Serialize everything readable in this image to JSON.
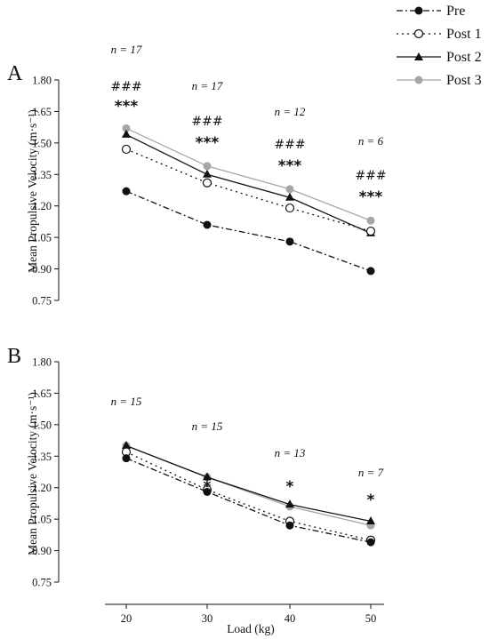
{
  "legend": {
    "items": [
      {
        "name": "Pre",
        "color": "#111111",
        "marker": "filled-circle",
        "dash": "dash-dot"
      },
      {
        "name": "Post 1",
        "color": "#111111",
        "marker": "open-circle",
        "dash": "dotted"
      },
      {
        "name": "Post 2",
        "color": "#111111",
        "marker": "triangle",
        "dash": "solid"
      },
      {
        "name": "Post 3",
        "color": "#a6a6a6",
        "marker": "grey-circle",
        "dash": "solid"
      }
    ]
  },
  "chart_data": [
    {
      "type": "line",
      "panel": "A",
      "ylabel": "Mean Propulsive Velocity (m·s⁻¹)",
      "xlabel": "",
      "ylim": [
        0.75,
        1.8
      ],
      "yticks": [
        "0.75",
        "0.90",
        "1.05",
        "1.20",
        "1.35",
        "1.50",
        "1.65",
        "1.80"
      ],
      "x": [
        20,
        30,
        40,
        50
      ],
      "series": [
        {
          "name": "Pre",
          "values": [
            1.27,
            1.11,
            1.03,
            0.89
          ]
        },
        {
          "name": "Post 1",
          "values": [
            1.47,
            1.31,
            1.19,
            1.08
          ]
        },
        {
          "name": "Post 2",
          "values": [
            1.54,
            1.35,
            1.24,
            1.07
          ]
        },
        {
          "name": "Post 3",
          "values": [
            1.57,
            1.39,
            1.28,
            1.13
          ]
        }
      ],
      "annotations": [
        {
          "x": 20,
          "n": "n = 17",
          "hash": "###",
          "stars": "***"
        },
        {
          "x": 30,
          "n": "n = 17",
          "hash": "###",
          "stars": "***"
        },
        {
          "x": 40,
          "n": "n = 12",
          "hash": "###",
          "stars": "***"
        },
        {
          "x": 50,
          "n": "n = 6",
          "hash": "###",
          "stars": "***"
        }
      ]
    },
    {
      "type": "line",
      "panel": "B",
      "ylabel": "Mean Propulsive Velocity (m·s⁻¹)",
      "xlabel": "Load (kg)",
      "ylim": [
        0.75,
        1.8
      ],
      "yticks": [
        "0.75",
        "0.90",
        "1.05",
        "1.20",
        "1.35",
        "1.50",
        "1.65",
        "1.80"
      ],
      "x": [
        20,
        30,
        40,
        50
      ],
      "xticks": [
        "20",
        "30",
        "40",
        "50"
      ],
      "series": [
        {
          "name": "Pre",
          "values": [
            1.34,
            1.18,
            1.02,
            0.94
          ]
        },
        {
          "name": "Post 1",
          "values": [
            1.37,
            1.19,
            1.04,
            0.95
          ]
        },
        {
          "name": "Post 2",
          "values": [
            1.4,
            1.25,
            1.12,
            1.04
          ]
        },
        {
          "name": "Post 3",
          "values": [
            1.4,
            1.25,
            1.11,
            1.02
          ]
        }
      ],
      "annotations": [
        {
          "x": 20,
          "n": "n = 15",
          "hash": "",
          "stars": ""
        },
        {
          "x": 30,
          "n": "n = 15",
          "hash": "",
          "stars": "*"
        },
        {
          "x": 40,
          "n": "n = 13",
          "hash": "",
          "stars": "*"
        },
        {
          "x": 50,
          "n": "n = 7",
          "hash": "",
          "stars": "*"
        }
      ]
    }
  ]
}
